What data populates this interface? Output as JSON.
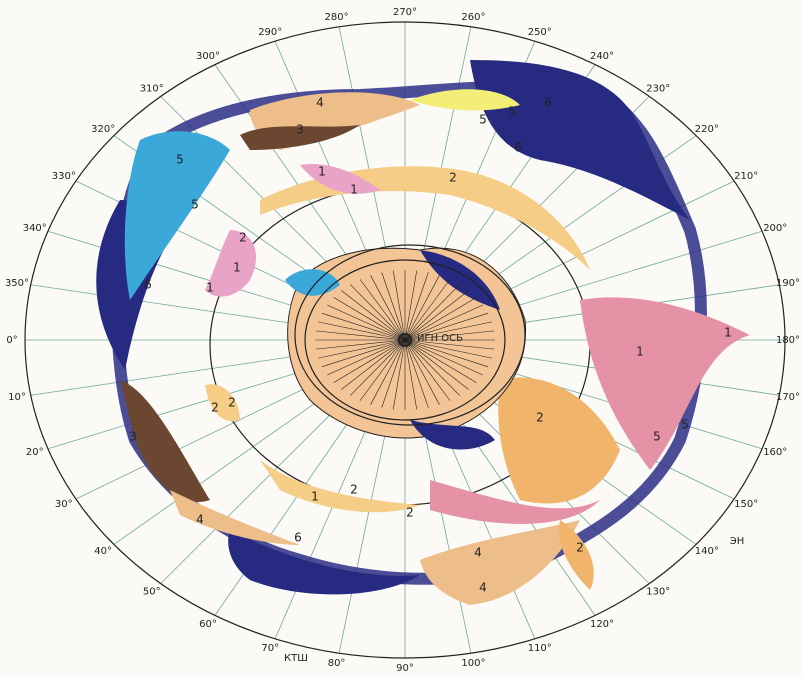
{
  "angle_labels": [
    "0°",
    "10°",
    "20°",
    "30°",
    "40°",
    "50°",
    "60°",
    "70°",
    "80°",
    "90°",
    "100°",
    "110°",
    "120°",
    "130°",
    "140°",
    "150°",
    "160°",
    "170°",
    "180°",
    "190°",
    "200°",
    "210°",
    "220°",
    "230°",
    "240°",
    "250°",
    "260°",
    "270°",
    "280°",
    "290°",
    "300°",
    "310°",
    "320°",
    "330°",
    "340°",
    "350°"
  ],
  "region_labels": [
    "4",
    "3",
    "5",
    "5",
    "6",
    "6",
    "5",
    "5",
    "6",
    "3",
    "4",
    "6",
    "4",
    "4",
    "2",
    "2",
    "5",
    "5",
    "1",
    "1",
    "1",
    "1",
    "2",
    "2",
    "1",
    "1",
    "2",
    "2",
    "1",
    "2",
    "2"
  ],
  "center_label": "ИГН ОСЬ",
  "annotations": [
    "КТШ",
    "ЭН"
  ]
}
